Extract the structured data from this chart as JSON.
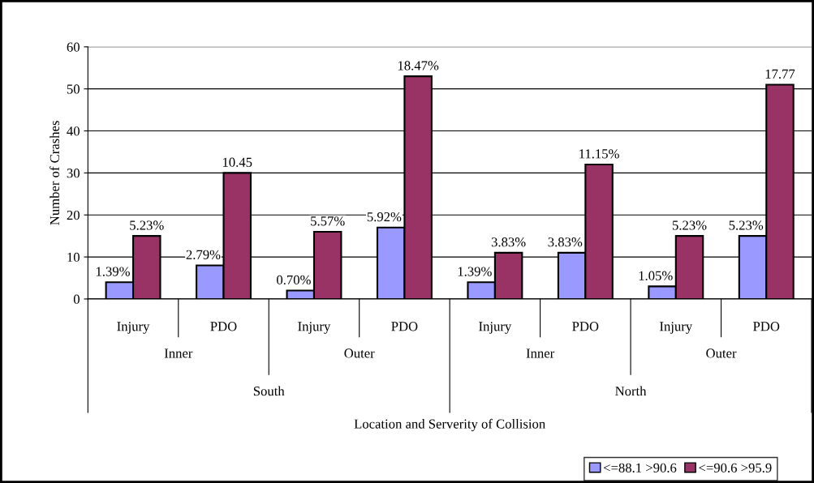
{
  "chart_data": {
    "type": "bar",
    "ylabel": "Number of Crashes",
    "categories": [
      "Injury",
      "PDO",
      "Injury",
      "PDO",
      "Injury",
      "PDO",
      "Injury",
      "PDO"
    ],
    "series": [
      {
        "name": "<=88.1 >90.6",
        "color": "#9999ff",
        "values": [
          4,
          8,
          2,
          17,
          4,
          11,
          3,
          15
        ]
      },
      {
        "name": "<=90.6 >95.9",
        "color": "#993366",
        "values": [
          15,
          30,
          16,
          53,
          11,
          32,
          15,
          51
        ]
      }
    ],
    "annotations": [
      "Inner",
      "Outer",
      "Inner",
      "Outer",
      "South",
      "North",
      "Location and Serverity of Collision",
      {
        "text": "1.39%",
        "y": 4
      },
      {
        "text": "2.79%",
        "y": 8
      },
      {
        "text": "0.70%",
        "y": 2
      },
      {
        "text": "5.92%",
        "y": 17
      },
      {
        "text": "1.39%",
        "y": 4
      },
      {
        "text": "3.83%",
        "y": 11
      },
      {
        "text": "1.05%",
        "y": 3
      },
      {
        "text": "5.23%",
        "y": 15
      },
      {
        "text": "5.23%",
        "y": 15
      },
      {
        "text": "10.45",
        "y": 30
      },
      {
        "text": "5.57%",
        "y": 16
      },
      {
        "text": "18.47%",
        "y": 53
      },
      {
        "text": "3.83%",
        "y": 11
      },
      {
        "text": "11.15%",
        "y": 32
      },
      {
        "text": "5.23%",
        "y": 15
      },
      {
        "text": "17.77",
        "y": 51
      }
    ],
    "ylim": [
      0,
      60
    ],
    "yticks": [
      0,
      10,
      20,
      30,
      40,
      50,
      60
    ],
    "grid": "y",
    "legend": "bottom right"
  }
}
